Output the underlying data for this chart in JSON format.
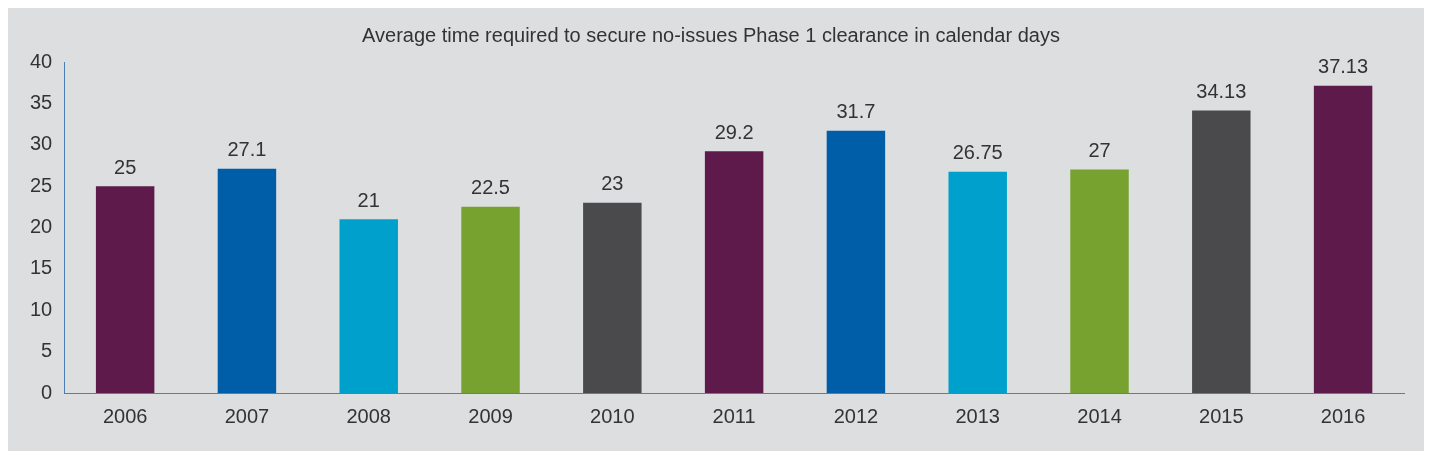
{
  "chart_data": {
    "type": "bar",
    "title": "Average time required to secure no-issues Phase 1 clearance in calendar days",
    "categories": [
      "2006",
      "2007",
      "2008",
      "2009",
      "2010",
      "2011",
      "2012",
      "2013",
      "2014",
      "2015",
      "2016"
    ],
    "values": [
      25,
      27.1,
      21,
      22.5,
      23,
      29.2,
      31.7,
      26.75,
      27,
      34.13,
      37.13
    ],
    "colors": [
      "#5e1a4a",
      "#005ea8",
      "#00a0cc",
      "#78a22f",
      "#4a4a4c",
      "#5e1a4a",
      "#005ea8",
      "#00a0cc",
      "#78a22f",
      "#4a4a4c",
      "#5e1a4a"
    ],
    "ylim": [
      0,
      40
    ],
    "yticks": [
      0,
      5,
      10,
      15,
      20,
      25,
      30,
      35,
      40
    ],
    "grid": false,
    "legend": false,
    "data_labels": true
  }
}
